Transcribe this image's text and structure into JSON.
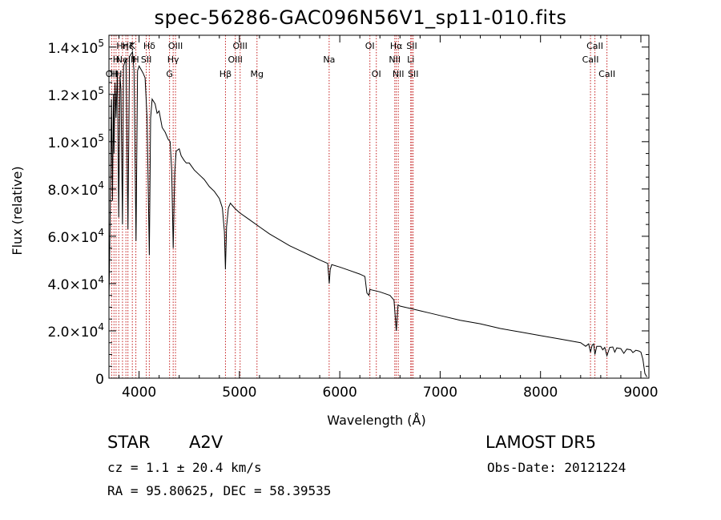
{
  "title": "spec-56286-GAC096N56V1_sp11-010.fits",
  "info": {
    "class_label": "STAR",
    "subclass": "A2V",
    "survey": "LAMOST DR5",
    "cz": "cz = 1.1 ± 20.4 km/s",
    "obs_date": "Obs-Date: 20121224",
    "coords": "RA =  95.80625, DEC =  58.39535"
  },
  "chart_data": {
    "type": "line",
    "xlabel": "Wavelength (Å)",
    "ylabel": "Flux (relative)",
    "xlim": [
      3700,
      9080
    ],
    "ylim": [
      0,
      145000
    ],
    "grid": false,
    "x_ticks": [
      {
        "value": 4000,
        "label": "4000"
      },
      {
        "value": 5000,
        "label": "5000"
      },
      {
        "value": 6000,
        "label": "6000"
      },
      {
        "value": 7000,
        "label": "7000"
      },
      {
        "value": 8000,
        "label": "8000"
      },
      {
        "value": 9000,
        "label": "9000"
      }
    ],
    "y_ticks": [
      {
        "value": 0,
        "mant": "0",
        "exp": ""
      },
      {
        "value": 20000,
        "mant": "2.0×10",
        "exp": "4"
      },
      {
        "value": 40000,
        "mant": "4.0×10",
        "exp": "4"
      },
      {
        "value": 60000,
        "mant": "6.0×10",
        "exp": "4"
      },
      {
        "value": 80000,
        "mant": "8.0×10",
        "exp": "4"
      },
      {
        "value": 100000,
        "mant": "1.0×10",
        "exp": "5"
      },
      {
        "value": 120000,
        "mant": "1.2×10",
        "exp": "5"
      },
      {
        "value": 140000,
        "mant": "1.4×10",
        "exp": "5"
      }
    ],
    "series": [
      {
        "color": "#000000",
        "points": [
          [
            3700,
            32000
          ],
          [
            3710,
            63000
          ],
          [
            3725,
            118000
          ],
          [
            3735,
            75000
          ],
          [
            3745,
            120000
          ],
          [
            3750,
            95000
          ],
          [
            3760,
            125000
          ],
          [
            3770,
            110000
          ],
          [
            3785,
            130000
          ],
          [
            3797,
            68000
          ],
          [
            3810,
            128000
          ],
          [
            3820,
            122000
          ],
          [
            3835,
            65000
          ],
          [
            3845,
            132000
          ],
          [
            3870,
            135000
          ],
          [
            3889,
            63000
          ],
          [
            3905,
            136000
          ],
          [
            3935,
            138000
          ],
          [
            3950,
            130000
          ],
          [
            3970,
            58000
          ],
          [
            3985,
            130000
          ],
          [
            4000,
            132000
          ],
          [
            4040,
            129000
          ],
          [
            4060,
            127000
          ],
          [
            4080,
            110000
          ],
          [
            4102,
            52000
          ],
          [
            4115,
            110000
          ],
          [
            4130,
            118000
          ],
          [
            4160,
            116000
          ],
          [
            4180,
            112000
          ],
          [
            4200,
            113000
          ],
          [
            4230,
            106000
          ],
          [
            4260,
            104000
          ],
          [
            4290,
            101000
          ],
          [
            4310,
            100000
          ],
          [
            4325,
            88000
          ],
          [
            4340,
            55000
          ],
          [
            4355,
            87000
          ],
          [
            4370,
            96000
          ],
          [
            4400,
            97000
          ],
          [
            4420,
            94000
          ],
          [
            4450,
            92000
          ],
          [
            4470,
            91000
          ],
          [
            4500,
            91000
          ],
          [
            4550,
            88000
          ],
          [
            4600,
            86000
          ],
          [
            4650,
            84000
          ],
          [
            4700,
            81000
          ],
          [
            4750,
            79000
          ],
          [
            4800,
            76000
          ],
          [
            4830,
            72000
          ],
          [
            4850,
            62000
          ],
          [
            4861,
            46000
          ],
          [
            4872,
            64000
          ],
          [
            4890,
            72000
          ],
          [
            4910,
            74000
          ],
          [
            4950,
            72000
          ],
          [
            5000,
            70000
          ],
          [
            5100,
            67000
          ],
          [
            5200,
            64000
          ],
          [
            5300,
            61000
          ],
          [
            5400,
            58500
          ],
          [
            5500,
            56000
          ],
          [
            5600,
            54000
          ],
          [
            5700,
            52000
          ],
          [
            5800,
            50000
          ],
          [
            5880,
            48500
          ],
          [
            5895,
            40000
          ],
          [
            5905,
            46000
          ],
          [
            5920,
            48000
          ],
          [
            6000,
            47000
          ],
          [
            6100,
            45500
          ],
          [
            6200,
            44000
          ],
          [
            6250,
            43000
          ],
          [
            6270,
            36000
          ],
          [
            6290,
            35000
          ],
          [
            6300,
            37500
          ],
          [
            6400,
            36500
          ],
          [
            6500,
            35000
          ],
          [
            6540,
            33000
          ],
          [
            6563,
            20000
          ],
          [
            6580,
            31000
          ],
          [
            6600,
            30500
          ],
          [
            6700,
            29500
          ],
          [
            6800,
            28500
          ],
          [
            6900,
            27500
          ],
          [
            7000,
            26500
          ],
          [
            7200,
            24500
          ],
          [
            7400,
            23000
          ],
          [
            7600,
            21000
          ],
          [
            7800,
            19500
          ],
          [
            8000,
            18000
          ],
          [
            8200,
            16500
          ],
          [
            8400,
            15000
          ],
          [
            8450,
            13500
          ],
          [
            8480,
            14500
          ],
          [
            8498,
            11000
          ],
          [
            8515,
            14000
          ],
          [
            8530,
            14500
          ],
          [
            8542,
            10000
          ],
          [
            8560,
            13500
          ],
          [
            8600,
            13500
          ],
          [
            8620,
            12000
          ],
          [
            8640,
            13000
          ],
          [
            8662,
            9500
          ],
          [
            8690,
            13000
          ],
          [
            8720,
            13200
          ],
          [
            8740,
            11000
          ],
          [
            8760,
            12800
          ],
          [
            8800,
            12500
          ],
          [
            8830,
            10500
          ],
          [
            8860,
            12300
          ],
          [
            8900,
            12000
          ],
          [
            8920,
            10800
          ],
          [
            8950,
            11800
          ],
          [
            8980,
            11500
          ],
          [
            9000,
            11000
          ],
          [
            9020,
            8000
          ],
          [
            9040,
            2000
          ],
          [
            9060,
            500
          ]
        ]
      }
    ],
    "line_markers": [
      {
        "wave": 3727,
        "label": "OII",
        "row": 2
      },
      {
        "wave": 3750,
        "label": "H",
        "row": 2
      },
      {
        "wave": 3771,
        "label": "H",
        "row": 1
      },
      {
        "wave": 3798,
        "label": "H",
        "row": 2
      },
      {
        "wave": 3835,
        "label": "Hη",
        "row": 0
      },
      {
        "wave": 3869,
        "label": "NeIII",
        "row": 1
      },
      {
        "wave": 3889,
        "label": "Hζ",
        "row": 0
      },
      {
        "wave": 3933,
        "label": "K",
        "row": 0
      },
      {
        "wave": 3968,
        "label": "H",
        "row": 1
      },
      {
        "wave": 4102,
        "label": "Hδ",
        "row": 0
      },
      {
        "wave": 4072,
        "label": "SII",
        "row": 1
      },
      {
        "wave": 4304,
        "label": "G",
        "row": 2
      },
      {
        "wave": 4340,
        "label": "Hγ",
        "row": 1
      },
      {
        "wave": 4363,
        "label": "OIII",
        "row": 0
      },
      {
        "wave": 4861,
        "label": "Hβ",
        "row": 2
      },
      {
        "wave": 4959,
        "label": "OIII",
        "row": 1
      },
      {
        "wave": 5007,
        "label": "OIII",
        "row": 0
      },
      {
        "wave": 5175,
        "label": "Mg",
        "row": 2
      },
      {
        "wave": 5894,
        "label": "Na",
        "row": 1
      },
      {
        "wave": 6300,
        "label": "OI",
        "row": 0
      },
      {
        "wave": 6364,
        "label": "OI",
        "row": 2
      },
      {
        "wave": 6548,
        "label": "NII",
        "row": 1
      },
      {
        "wave": 6563,
        "label": "Hα",
        "row": 0
      },
      {
        "wave": 6583,
        "label": "NII",
        "row": 2
      },
      {
        "wave": 6707,
        "label": "Li",
        "row": 1
      },
      {
        "wave": 6717,
        "label": "SII",
        "row": 0
      },
      {
        "wave": 6731,
        "label": "SII",
        "row": 2
      },
      {
        "wave": 8498,
        "label": "CaII",
        "row": 1
      },
      {
        "wave": 8542,
        "label": "CaII",
        "row": 0
      },
      {
        "wave": 8662,
        "label": "CaII",
        "row": 2
      }
    ]
  }
}
